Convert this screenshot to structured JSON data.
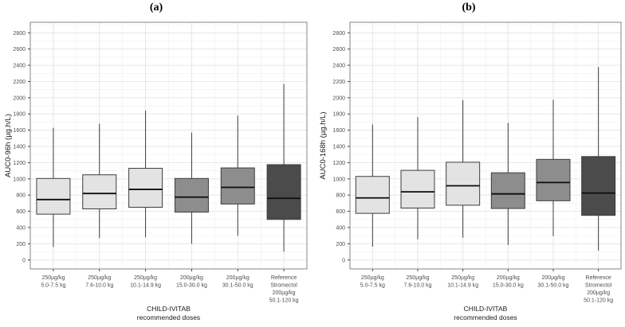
{
  "style": {
    "background": "#ffffff",
    "panel_border": "#858585",
    "grid_major": "#e4e4e4",
    "grid_minor": "#f2f2f2",
    "tick_color": "#333333",
    "tick_label_color": "#4d4d4d",
    "axis_title_color": "#1a1a1a",
    "box_stroke": "#3d3d3d",
    "median_color": "#0d0d0d",
    "fill_light": "#e3e3e3",
    "fill_medium": "#8d8d8d",
    "fill_dark": "#4b4b4b"
  },
  "chart_data": [
    {
      "type": "boxplot",
      "title": "(a)",
      "ylabel": "AUC0-96h (µg.h/L)",
      "xlabel": "CHILD-IVITAB\nrecommended doses",
      "ylim": [
        0,
        2800
      ],
      "ytick_step": 200,
      "grid": true,
      "legend": false,
      "categories": [
        [
          "250µg/kg",
          "5.0-7.5 kg"
        ],
        [
          "250µg/kg",
          "7.6-10.0 kg"
        ],
        [
          "250µg/kg",
          "10.1-14.9 kg"
        ],
        [
          "200µg/kg",
          "15.0-30.0 kg"
        ],
        [
          "200µg/kg",
          "30.1-50.0 kg"
        ],
        [
          "Reference",
          "Stromectol",
          "200µg/kg",
          "50.1-120 kg"
        ]
      ],
      "boxes": [
        {
          "whisker_low": 160,
          "q1": 565,
          "median": 745,
          "q3": 1005,
          "whisker_high": 1630,
          "fill": "#e3e3e3"
        },
        {
          "whisker_low": 270,
          "q1": 630,
          "median": 820,
          "q3": 1050,
          "whisker_high": 1680,
          "fill": "#e3e3e3"
        },
        {
          "whisker_low": 280,
          "q1": 650,
          "median": 870,
          "q3": 1130,
          "whisker_high": 1840,
          "fill": "#e3e3e3"
        },
        {
          "whisker_low": 200,
          "q1": 590,
          "median": 775,
          "q3": 1005,
          "whisker_high": 1570,
          "fill": "#8d8d8d"
        },
        {
          "whisker_low": 300,
          "q1": 690,
          "median": 895,
          "q3": 1135,
          "whisker_high": 1780,
          "fill": "#8d8d8d"
        },
        {
          "whisker_low": 105,
          "q1": 500,
          "median": 760,
          "q3": 1175,
          "whisker_high": 2170,
          "fill": "#4b4b4b"
        }
      ]
    },
    {
      "type": "boxplot",
      "title": "(b)",
      "ylabel": "AUC0-168h (µg.h/L)",
      "xlabel": "CHILD-IVITAB\nrecommended doses",
      "ylim": [
        0,
        2800
      ],
      "ytick_step": 200,
      "grid": true,
      "legend": false,
      "categories": [
        [
          "250µg/kg",
          "5.0-7.5 kg"
        ],
        [
          "250µg/kg",
          "7.6-10.0 kg"
        ],
        [
          "250µg/kg",
          "10.1-14.9 kg"
        ],
        [
          "200µg/kg",
          "15.0-30.0 kg"
        ],
        [
          "200µg/kg",
          "30.1-50.0 kg"
        ],
        [
          "Reference",
          "Stromectol",
          "200µg/kg",
          "50.1-120 kg"
        ]
      ],
      "boxes": [
        {
          "whisker_low": 165,
          "q1": 575,
          "median": 765,
          "q3": 1030,
          "whisker_high": 1670,
          "fill": "#e3e3e3"
        },
        {
          "whisker_low": 255,
          "q1": 640,
          "median": 840,
          "q3": 1105,
          "whisker_high": 1760,
          "fill": "#e3e3e3"
        },
        {
          "whisker_low": 275,
          "q1": 675,
          "median": 915,
          "q3": 1205,
          "whisker_high": 1970,
          "fill": "#e3e3e3"
        },
        {
          "whisker_low": 185,
          "q1": 635,
          "median": 815,
          "q3": 1075,
          "whisker_high": 1690,
          "fill": "#8d8d8d"
        },
        {
          "whisker_low": 295,
          "q1": 730,
          "median": 955,
          "q3": 1240,
          "whisker_high": 1975,
          "fill": "#8d8d8d"
        },
        {
          "whisker_low": 115,
          "q1": 550,
          "median": 825,
          "q3": 1275,
          "whisker_high": 2380,
          "fill": "#4b4b4b"
        }
      ]
    }
  ]
}
